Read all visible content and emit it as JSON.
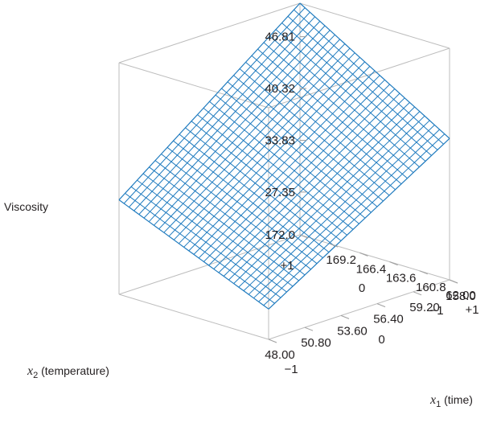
{
  "chart_data": {
    "type": "surface",
    "z_label": "Viscosity",
    "x1_label": {
      "var": "x",
      "sub": "1",
      "text": " (time)"
    },
    "x2_label": {
      "var": "x",
      "sub": "2",
      "text": " (temperature)"
    },
    "x1_ticks": [
      "48.00",
      "50.80",
      "53.60",
      "56.40",
      "59.20",
      "62.00"
    ],
    "x2_ticks": [
      "158.0",
      "160.8",
      "163.6",
      "166.4",
      "169.2",
      "172.0"
    ],
    "z_ticks": [
      "27.35",
      "33.83",
      "40.32",
      "46.81"
    ],
    "x1_coded": [
      "−1",
      "0",
      "+1"
    ],
    "x2_coded": [
      "−1",
      "0",
      "+1"
    ],
    "x1_range": [
      48.0,
      62.0
    ],
    "x2_range": [
      158.0,
      172.0
    ],
    "z_range": [
      22.0,
      51.0
    ],
    "surface_corners": {
      "x1_low_x2_low": 25.8,
      "x1_high_x2_low": 39.7,
      "x1_low_x2_high": 33.83,
      "x1_high_x2_high": 51.0
    },
    "grid_lines": 30,
    "colors": {
      "surface": "#1f7bbf",
      "box": "#bdbdbd"
    }
  }
}
